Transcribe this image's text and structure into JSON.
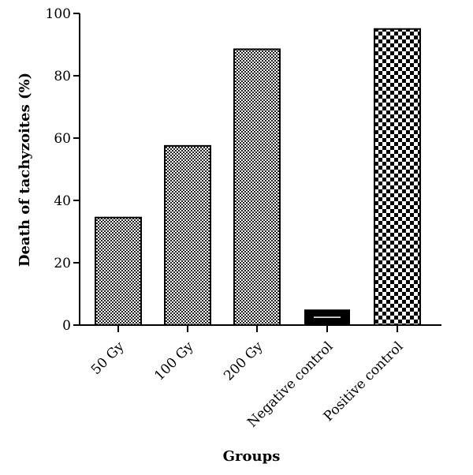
{
  "chart_data": {
    "type": "bar",
    "title": "",
    "xlabel": "Groups",
    "ylabel": "Death of tachyzoites (%)",
    "ylim": [
      0,
      100
    ],
    "yticks": [
      0,
      20,
      40,
      60,
      80,
      100
    ],
    "categories": [
      "50 Gy",
      "100 Gy",
      "200 Gy",
      "Negative control",
      "Positive control"
    ],
    "values": [
      34.5,
      57.5,
      88.5,
      5,
      95
    ],
    "bar_patterns": [
      "fine-check",
      "fine-check",
      "fine-check",
      "black-white-stripe",
      "coarse-check"
    ],
    "colors": {
      "fill": "#000000",
      "background": "#ffffff"
    },
    "grid": false,
    "legend": "none"
  }
}
